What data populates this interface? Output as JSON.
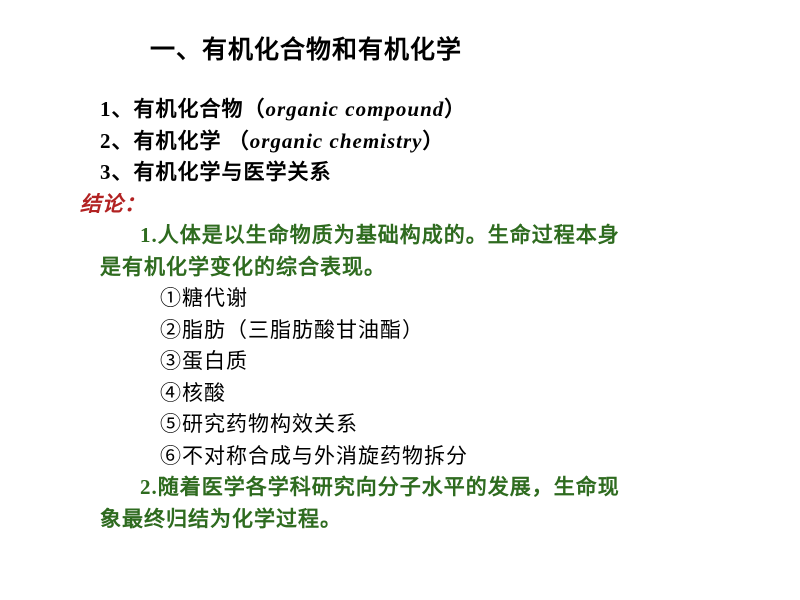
{
  "title": "一、有机化合物和有机化学",
  "title_color": "#000000",
  "title_fontsize": 25,
  "body_fontsize": 21,
  "text_color": "#000000",
  "conclusion_color": "#b22222",
  "highlight_color": "#2e6b1f",
  "background_color": "#ffffff",
  "items": {
    "i1_pre": "1、有机化合物（",
    "i1_en": "organic compound",
    "i1_post": "）",
    "i2_pre": "2、有机化学 （",
    "i2_en": "organic chemistry",
    "i2_post": "）",
    "i3": "3、有机化学与医学关系"
  },
  "conclusion_label": "结论：",
  "c1_a": "1.人体是以生命物质为基础构成的。生命过程本身",
  "c1_b": "是有机化学变化的综合表现。",
  "list": {
    "l1": "①糖代谢",
    "l2": "②脂肪（三脂肪酸甘油酯）",
    "l3": "③蛋白质",
    "l4": "④核酸",
    "l5": "⑤研究药物构效关系",
    "l6": "⑥不对称合成与外消旋药物拆分"
  },
  "c2_a": "2.随着医学各学科研究向分子水平的发展，生命现",
  "c2_b": "象最终归结为化学过程。"
}
